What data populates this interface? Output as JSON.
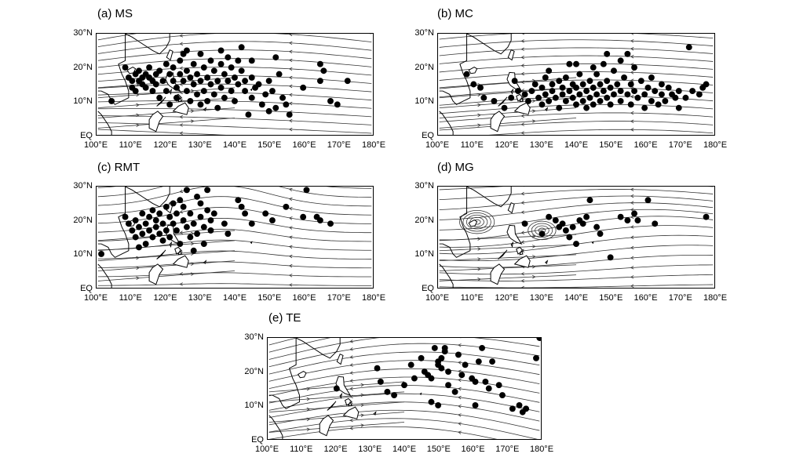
{
  "panels": [
    {
      "title": "(a) MS",
      "dots": [
        [
          104,
          10
        ],
        [
          108,
          20
        ],
        [
          109,
          17
        ],
        [
          110,
          16
        ],
        [
          110,
          14
        ],
        [
          111,
          18
        ],
        [
          111,
          13
        ],
        [
          112,
          16
        ],
        [
          112,
          19
        ],
        [
          113,
          17
        ],
        [
          113,
          15
        ],
        [
          114,
          18
        ],
        [
          114,
          14
        ],
        [
          115,
          17
        ],
        [
          115,
          20
        ],
        [
          116,
          16
        ],
        [
          116,
          13
        ],
        [
          117,
          18
        ],
        [
          117,
          15
        ],
        [
          118,
          19
        ],
        [
          118,
          11
        ],
        [
          119,
          16
        ],
        [
          120,
          21
        ],
        [
          120,
          13
        ],
        [
          121,
          18
        ],
        [
          121,
          9
        ],
        [
          122,
          16
        ],
        [
          122,
          20
        ],
        [
          123,
          14
        ],
        [
          123,
          11
        ],
        [
          124,
          18
        ],
        [
          124,
          22
        ],
        [
          125,
          16
        ],
        [
          125,
          24
        ],
        [
          126,
          13
        ],
        [
          126,
          19
        ],
        [
          127,
          10
        ],
        [
          127,
          17
        ],
        [
          128,
          21
        ],
        [
          128,
          15
        ],
        [
          129,
          12
        ],
        [
          129,
          18
        ],
        [
          130,
          9
        ],
        [
          130,
          16
        ],
        [
          131,
          20
        ],
        [
          131,
          13
        ],
        [
          132,
          17
        ],
        [
          132,
          10
        ],
        [
          133,
          22
        ],
        [
          133,
          15
        ],
        [
          134,
          19
        ],
        [
          134,
          12
        ],
        [
          135,
          8
        ],
        [
          135,
          16
        ],
        [
          136,
          21
        ],
        [
          136,
          14
        ],
        [
          137,
          18
        ],
        [
          137,
          11
        ],
        [
          138,
          23
        ],
        [
          138,
          16
        ],
        [
          139,
          13
        ],
        [
          139,
          20
        ],
        [
          140,
          10
        ],
        [
          140,
          17
        ],
        [
          141,
          22
        ],
        [
          141,
          15
        ],
        [
          142,
          26
        ],
        [
          142,
          19
        ],
        [
          143,
          13
        ],
        [
          143,
          16
        ],
        [
          144,
          6
        ],
        [
          145,
          11
        ],
        [
          145,
          17
        ],
        [
          146,
          14
        ],
        [
          147,
          15
        ],
        [
          148,
          9
        ],
        [
          149,
          12
        ],
        [
          150,
          16
        ],
        [
          150,
          7
        ],
        [
          151,
          13
        ],
        [
          152,
          8
        ],
        [
          153,
          18
        ],
        [
          154,
          11
        ],
        [
          155,
          9
        ],
        [
          156,
          6
        ],
        [
          160,
          14
        ],
        [
          165,
          21
        ],
        [
          165,
          16
        ],
        [
          166,
          19
        ],
        [
          168,
          10
        ],
        [
          170,
          9
        ],
        [
          173,
          16
        ],
        [
          126,
          25
        ],
        [
          130,
          24
        ],
        [
          136,
          25
        ],
        [
          145,
          22
        ],
        [
          152,
          23
        ]
      ]
    },
    {
      "title": "(b) MC",
      "dots": [
        [
          108,
          18
        ],
        [
          110,
          15
        ],
        [
          112,
          14
        ],
        [
          113,
          11
        ],
        [
          116,
          10
        ],
        [
          119,
          8
        ],
        [
          121,
          11
        ],
        [
          123,
          13
        ],
        [
          125,
          12
        ],
        [
          126,
          10
        ],
        [
          127,
          13
        ],
        [
          128,
          15
        ],
        [
          129,
          11
        ],
        [
          130,
          14
        ],
        [
          130,
          9
        ],
        [
          131,
          17
        ],
        [
          131,
          12
        ],
        [
          132,
          10
        ],
        [
          133,
          15
        ],
        [
          133,
          13
        ],
        [
          134,
          11
        ],
        [
          135,
          16
        ],
        [
          135,
          8
        ],
        [
          136,
          14
        ],
        [
          136,
          12
        ],
        [
          137,
          10
        ],
        [
          137,
          17
        ],
        [
          138,
          13
        ],
        [
          138,
          21
        ],
        [
          139,
          11
        ],
        [
          139,
          15
        ],
        [
          140,
          9
        ],
        [
          140,
          14
        ],
        [
          141,
          12
        ],
        [
          141,
          18
        ],
        [
          142,
          10
        ],
        [
          142,
          15
        ],
        [
          143,
          13
        ],
        [
          143,
          8
        ],
        [
          144,
          16
        ],
        [
          144,
          11
        ],
        [
          145,
          14
        ],
        [
          145,
          9
        ],
        [
          146,
          12
        ],
        [
          146,
          18
        ],
        [
          147,
          10
        ],
        [
          147,
          15
        ],
        [
          148,
          13
        ],
        [
          148,
          21
        ],
        [
          149,
          11
        ],
        [
          149,
          16
        ],
        [
          150,
          9
        ],
        [
          150,
          14
        ],
        [
          151,
          12
        ],
        [
          151,
          19
        ],
        [
          152,
          15
        ],
        [
          153,
          10
        ],
        [
          153,
          13
        ],
        [
          154,
          17
        ],
        [
          155,
          12
        ],
        [
          155,
          24
        ],
        [
          156,
          9
        ],
        [
          156,
          15
        ],
        [
          157,
          13
        ],
        [
          157,
          20
        ],
        [
          158,
          11
        ],
        [
          159,
          16
        ],
        [
          160,
          12
        ],
        [
          160,
          8
        ],
        [
          161,
          14
        ],
        [
          162,
          10
        ],
        [
          162,
          17
        ],
        [
          163,
          13
        ],
        [
          164,
          9
        ],
        [
          165,
          12
        ],
        [
          165,
          15
        ],
        [
          166,
          10
        ],
        [
          167,
          14
        ],
        [
          168,
          12
        ],
        [
          169,
          11
        ],
        [
          170,
          13
        ],
        [
          170,
          8
        ],
        [
          172,
          11
        ],
        [
          173,
          26
        ],
        [
          174,
          13
        ],
        [
          176,
          12
        ],
        [
          177,
          14
        ],
        [
          178,
          15
        ],
        [
          149,
          24
        ],
        [
          153,
          22
        ],
        [
          145,
          20
        ],
        [
          140,
          21
        ],
        [
          132,
          19
        ],
        [
          122,
          16
        ]
      ]
    },
    {
      "title": "(c) RMT",
      "dots": [
        [
          101,
          10
        ],
        [
          108,
          21
        ],
        [
          109,
          19
        ],
        [
          110,
          17
        ],
        [
          111,
          20
        ],
        [
          111,
          15
        ],
        [
          112,
          18
        ],
        [
          112,
          12
        ],
        [
          113,
          22
        ],
        [
          113,
          16
        ],
        [
          114,
          19
        ],
        [
          114,
          13
        ],
        [
          115,
          21
        ],
        [
          115,
          17
        ],
        [
          116,
          15
        ],
        [
          116,
          23
        ],
        [
          117,
          20
        ],
        [
          117,
          18
        ],
        [
          118,
          16
        ],
        [
          118,
          22
        ],
        [
          119,
          14
        ],
        [
          119,
          19
        ],
        [
          120,
          24
        ],
        [
          120,
          17
        ],
        [
          121,
          21
        ],
        [
          121,
          15
        ],
        [
          122,
          25
        ],
        [
          122,
          19
        ],
        [
          123,
          22
        ],
        [
          123,
          17
        ],
        [
          124,
          26
        ],
        [
          124,
          13
        ],
        [
          125,
          20
        ],
        [
          125,
          24
        ],
        [
          126,
          18
        ],
        [
          126,
          29
        ],
        [
          127,
          15
        ],
        [
          127,
          22
        ],
        [
          128,
          11
        ],
        [
          128,
          19
        ],
        [
          129,
          27
        ],
        [
          129,
          16
        ],
        [
          130,
          21
        ],
        [
          130,
          25
        ],
        [
          131,
          18
        ],
        [
          131,
          13
        ],
        [
          132,
          23
        ],
        [
          132,
          29
        ],
        [
          133,
          17
        ],
        [
          133,
          20
        ],
        [
          134,
          22
        ],
        [
          137,
          19
        ],
        [
          138,
          16
        ],
        [
          141,
          26
        ],
        [
          142,
          24
        ],
        [
          143,
          22
        ],
        [
          145,
          19
        ],
        [
          149,
          22
        ],
        [
          151,
          20
        ],
        [
          155,
          24
        ],
        [
          160,
          21
        ],
        [
          161,
          29
        ],
        [
          164,
          21
        ],
        [
          165,
          20
        ],
        [
          168,
          19
        ]
      ]
    },
    {
      "title": "(d) MG",
      "dots": [
        [
          132,
          21
        ],
        [
          134,
          20
        ],
        [
          135,
          18
        ],
        [
          136,
          19
        ],
        [
          137,
          17
        ],
        [
          138,
          15
        ],
        [
          139,
          18
        ],
        [
          140,
          13
        ],
        [
          141,
          20
        ],
        [
          142,
          19
        ],
        [
          143,
          21
        ],
        [
          144,
          26
        ],
        [
          146,
          18
        ],
        [
          147,
          16
        ],
        [
          150,
          9
        ],
        [
          153,
          21
        ],
        [
          155,
          20
        ],
        [
          157,
          22
        ],
        [
          158,
          20
        ],
        [
          161,
          26
        ],
        [
          163,
          19
        ],
        [
          178,
          21
        ],
        [
          130,
          16
        ],
        [
          125,
          19
        ]
      ]
    },
    {
      "title": "(e) TE",
      "dots": [
        [
          120,
          15
        ],
        [
          132,
          21
        ],
        [
          133,
          17
        ],
        [
          135,
          14
        ],
        [
          137,
          13
        ],
        [
          142,
          22
        ],
        [
          145,
          24
        ],
        [
          146,
          20
        ],
        [
          147,
          19
        ],
        [
          148,
          18
        ],
        [
          149,
          27
        ],
        [
          150,
          23
        ],
        [
          150,
          22
        ],
        [
          151,
          21
        ],
        [
          151,
          24
        ],
        [
          152,
          27
        ],
        [
          152,
          26
        ],
        [
          153,
          20
        ],
        [
          153,
          16
        ],
        [
          155,
          14
        ],
        [
          156,
          25
        ],
        [
          157,
          19
        ],
        [
          158,
          22
        ],
        [
          160,
          18
        ],
        [
          161,
          17
        ],
        [
          161,
          10
        ],
        [
          162,
          23
        ],
        [
          163,
          27
        ],
        [
          164,
          17
        ],
        [
          165,
          15
        ],
        [
          166,
          23
        ],
        [
          168,
          16
        ],
        [
          169,
          13
        ],
        [
          172,
          9
        ],
        [
          174,
          10
        ],
        [
          175,
          8
        ],
        [
          176,
          9
        ],
        [
          179,
          24
        ],
        [
          180,
          30
        ],
        [
          150,
          10
        ],
        [
          148,
          11
        ],
        [
          140,
          16
        ],
        [
          143,
          18
        ]
      ]
    }
  ],
  "lon_labels": [
    "100°E",
    "110°E",
    "120°E",
    "130°E",
    "140°E",
    "150°E",
    "160°E",
    "170°E",
    "180°E"
  ],
  "lat_labels": [
    "30°N",
    "20°N",
    "10°N",
    "EQ"
  ],
  "colors": {
    "ink": "#000000",
    "stream": "#333333"
  }
}
